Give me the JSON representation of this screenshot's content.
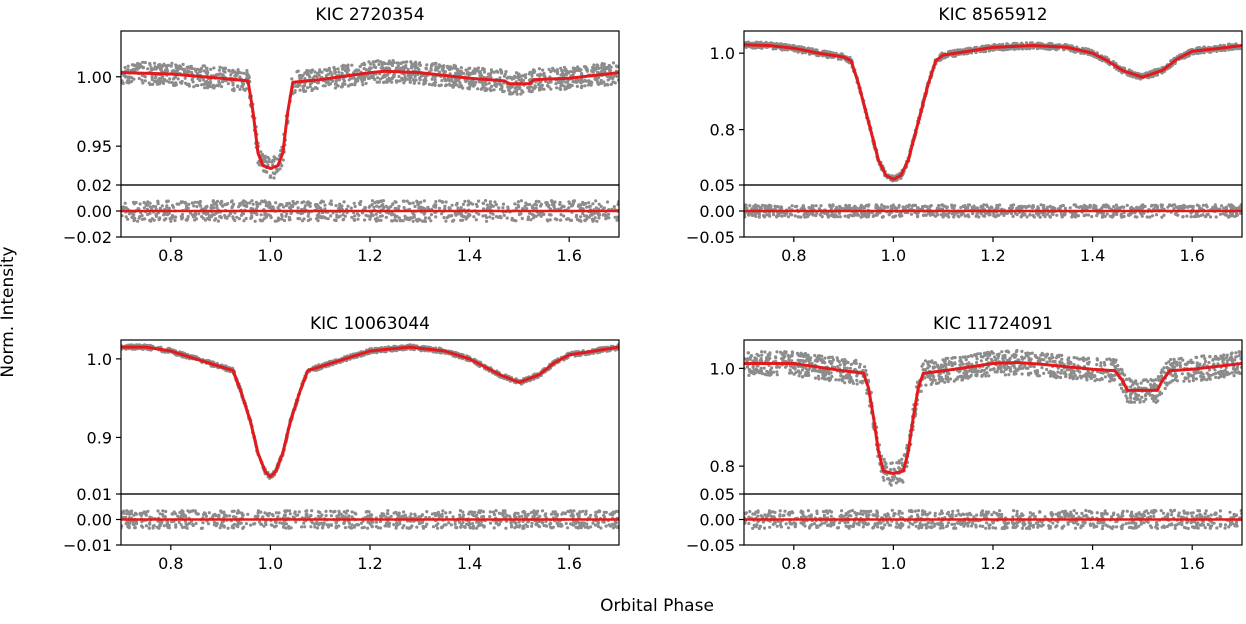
{
  "figure": {
    "xlabel": "Orbital Phase",
    "ylabel": "Norm. Intensity",
    "colors": {
      "data": "#8c8c8c",
      "model": "#e31a1c",
      "axes": "#000000"
    }
  },
  "chart_data": [
    {
      "type": "scatter",
      "title": "KIC 2720354",
      "x_ticks": [
        "0.8",
        "1.0",
        "1.2",
        "1.4",
        "1.6"
      ],
      "x_tick_values": [
        0.8,
        1.0,
        1.2,
        1.4,
        1.6
      ],
      "xlim": [
        0.7,
        1.7
      ],
      "main": {
        "ylim": [
          0.922,
          1.033
        ],
        "y_ticks": [
          "0.95",
          "1.00"
        ],
        "y_tick_values": [
          0.95,
          1.0
        ],
        "scatter_spread": 0.008,
        "model": [
          [
            0.7,
            1.003
          ],
          [
            0.8,
            1.002
          ],
          [
            0.9,
            0.999
          ],
          [
            0.955,
            0.997
          ],
          [
            0.965,
            0.975
          ],
          [
            0.975,
            0.945
          ],
          [
            0.985,
            0.936
          ],
          [
            1.0,
            0.934
          ],
          [
            1.015,
            0.936
          ],
          [
            1.025,
            0.945
          ],
          [
            1.035,
            0.975
          ],
          [
            1.045,
            0.996
          ],
          [
            1.1,
            0.998
          ],
          [
            1.2,
            1.003
          ],
          [
            1.23,
            1.004
          ],
          [
            1.3,
            1.003
          ],
          [
            1.4,
            0.999
          ],
          [
            1.47,
            0.997
          ],
          [
            1.48,
            0.995
          ],
          [
            1.52,
            0.995
          ],
          [
            1.53,
            0.998
          ],
          [
            1.6,
            0.999
          ],
          [
            1.7,
            1.003
          ]
        ]
      },
      "residual": {
        "ylim": [
          -0.02,
          0.02
        ],
        "y_ticks": [
          "−0.02",
          "0.00",
          "0.02"
        ],
        "y_tick_values": [
          -0.02,
          0.0,
          0.02
        ],
        "scatter_spread": 0.008
      }
    },
    {
      "type": "scatter",
      "title": "KIC 8565912",
      "x_ticks": [
        "0.8",
        "1.0",
        "1.2",
        "1.4",
        "1.6"
      ],
      "x_tick_values": [
        0.8,
        1.0,
        1.2,
        1.4,
        1.6
      ],
      "xlim": [
        0.7,
        1.7
      ],
      "main": {
        "ylim": [
          0.655,
          1.058
        ],
        "y_ticks": [
          "0.8",
          "1.0"
        ],
        "y_tick_values": [
          0.8,
          1.0
        ],
        "scatter_spread": 0.008,
        "model": [
          [
            0.7,
            1.022
          ],
          [
            0.75,
            1.02
          ],
          [
            0.8,
            1.013
          ],
          [
            0.85,
            1.0
          ],
          [
            0.9,
            0.99
          ],
          [
            0.915,
            0.98
          ],
          [
            0.93,
            0.92
          ],
          [
            0.95,
            0.82
          ],
          [
            0.97,
            0.72
          ],
          [
            0.985,
            0.68
          ],
          [
            1.0,
            0.67
          ],
          [
            1.015,
            0.68
          ],
          [
            1.03,
            0.72
          ],
          [
            1.05,
            0.82
          ],
          [
            1.07,
            0.92
          ],
          [
            1.085,
            0.98
          ],
          [
            1.1,
            0.995
          ],
          [
            1.2,
            1.015
          ],
          [
            1.28,
            1.02
          ],
          [
            1.35,
            1.015
          ],
          [
            1.4,
            1.0
          ],
          [
            1.43,
            0.98
          ],
          [
            1.46,
            0.955
          ],
          [
            1.5,
            0.937
          ],
          [
            1.54,
            0.955
          ],
          [
            1.57,
            0.985
          ],
          [
            1.6,
            1.005
          ],
          [
            1.65,
            1.012
          ],
          [
            1.7,
            1.02
          ]
        ]
      },
      "residual": {
        "ylim": [
          -0.05,
          0.05
        ],
        "y_ticks": [
          "−0.05",
          "0.00",
          "0.05"
        ],
        "y_tick_values": [
          -0.05,
          0.0,
          0.05
        ],
        "scatter_spread": 0.012
      }
    },
    {
      "type": "scatter",
      "title": "KIC 10063044",
      "x_ticks": [
        "0.8",
        "1.0",
        "1.2",
        "1.4",
        "1.6"
      ],
      "x_tick_values": [
        0.8,
        1.0,
        1.2,
        1.4,
        1.6
      ],
      "xlim": [
        0.7,
        1.7
      ],
      "main": {
        "ylim": [
          0.828,
          1.024
        ],
        "y_ticks": [
          "0.9",
          "1.0"
        ],
        "y_tick_values": [
          0.9,
          1.0
        ],
        "scatter_spread": 0.003,
        "model": [
          [
            0.7,
            1.015
          ],
          [
            0.75,
            1.015
          ],
          [
            0.8,
            1.01
          ],
          [
            0.85,
            1.0
          ],
          [
            0.9,
            0.99
          ],
          [
            0.925,
            0.985
          ],
          [
            0.94,
            0.96
          ],
          [
            0.96,
            0.92
          ],
          [
            0.975,
            0.88
          ],
          [
            0.99,
            0.856
          ],
          [
            1.0,
            0.85
          ],
          [
            1.01,
            0.856
          ],
          [
            1.025,
            0.88
          ],
          [
            1.04,
            0.92
          ],
          [
            1.06,
            0.96
          ],
          [
            1.075,
            0.985
          ],
          [
            1.1,
            0.99
          ],
          [
            1.2,
            1.01
          ],
          [
            1.28,
            1.015
          ],
          [
            1.35,
            1.01
          ],
          [
            1.4,
            1.0
          ],
          [
            1.43,
            0.99
          ],
          [
            1.46,
            0.98
          ],
          [
            1.5,
            0.97
          ],
          [
            1.54,
            0.98
          ],
          [
            1.57,
            0.995
          ],
          [
            1.6,
            1.005
          ],
          [
            1.65,
            1.01
          ],
          [
            1.7,
            1.015
          ]
        ]
      },
      "residual": {
        "ylim": [
          -0.01,
          0.01
        ],
        "y_ticks": [
          "−0.01",
          "0.00",
          "0.01"
        ],
        "y_tick_values": [
          -0.01,
          0.0,
          0.01
        ],
        "scatter_spread": 0.0035
      }
    },
    {
      "type": "scatter",
      "title": "KIC 11724091",
      "x_ticks": [
        "0.8",
        "1.0",
        "1.2",
        "1.4",
        "1.6"
      ],
      "x_tick_values": [
        0.8,
        1.0,
        1.2,
        1.4,
        1.6
      ],
      "xlim": [
        0.7,
        1.7
      ],
      "main": {
        "ylim": [
          0.743,
          1.058
        ],
        "y_ticks": [
          "0.8",
          "1.0"
        ],
        "y_tick_values": [
          0.8,
          1.0
        ],
        "scatter_spread": 0.025,
        "model": [
          [
            0.7,
            1.01
          ],
          [
            0.8,
            1.01
          ],
          [
            0.9,
            0.995
          ],
          [
            0.94,
            0.99
          ],
          [
            0.95,
            0.96
          ],
          [
            0.96,
            0.9
          ],
          [
            0.97,
            0.83
          ],
          [
            0.98,
            0.79
          ],
          [
            1.0,
            0.785
          ],
          [
            1.02,
            0.79
          ],
          [
            1.03,
            0.83
          ],
          [
            1.04,
            0.9
          ],
          [
            1.05,
            0.96
          ],
          [
            1.06,
            0.99
          ],
          [
            1.1,
            0.995
          ],
          [
            1.2,
            1.01
          ],
          [
            1.25,
            1.012
          ],
          [
            1.3,
            1.008
          ],
          [
            1.4,
            0.998
          ],
          [
            1.445,
            0.995
          ],
          [
            1.46,
            0.975
          ],
          [
            1.47,
            0.955
          ],
          [
            1.53,
            0.955
          ],
          [
            1.54,
            0.975
          ],
          [
            1.555,
            0.995
          ],
          [
            1.6,
            0.998
          ],
          [
            1.7,
            1.01
          ]
        ]
      },
      "residual": {
        "ylim": [
          -0.05,
          0.05
        ],
        "y_ticks": [
          "−0.05",
          "0.00",
          "0.05"
        ],
        "y_tick_values": [
          -0.05,
          0.0,
          0.05
        ],
        "scatter_spread": 0.018
      }
    }
  ]
}
